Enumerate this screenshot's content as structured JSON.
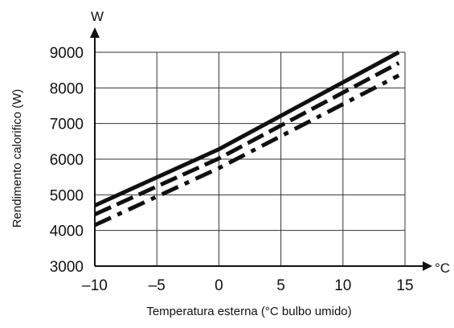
{
  "chart_data": {
    "type": "line",
    "xlabel": "Temperatura esterna (°C bulbo umido)",
    "ylabel": "Rendimento calorifico (W)",
    "x_unit": "°C",
    "y_unit": "W",
    "xlim": [
      -10,
      15
    ],
    "ylim": [
      3000,
      9000
    ],
    "xticks": [
      -10,
      -5,
      0,
      5,
      10,
      15
    ],
    "yticks": [
      3000,
      4000,
      5000,
      6000,
      7000,
      8000,
      9000
    ],
    "xtick_labels": [
      "–10",
      "–5",
      "0",
      "5",
      "10",
      "15"
    ],
    "ytick_labels": [
      "3000",
      "4000",
      "5000",
      "6000",
      "7000",
      "8000",
      "9000"
    ],
    "grid": true,
    "series": [
      {
        "style": "solid",
        "color": "#111111",
        "x": [
          -10,
          0,
          14.5
        ],
        "y": [
          4700,
          6280,
          9000
        ]
      },
      {
        "style": "dashed",
        "color": "#111111",
        "x": [
          -10,
          0,
          14.5
        ],
        "y": [
          4450,
          6020,
          8700
        ]
      },
      {
        "style": "dashdot",
        "color": "#111111",
        "x": [
          -10,
          0,
          14.5
        ],
        "y": [
          4150,
          5750,
          8350
        ]
      }
    ]
  }
}
